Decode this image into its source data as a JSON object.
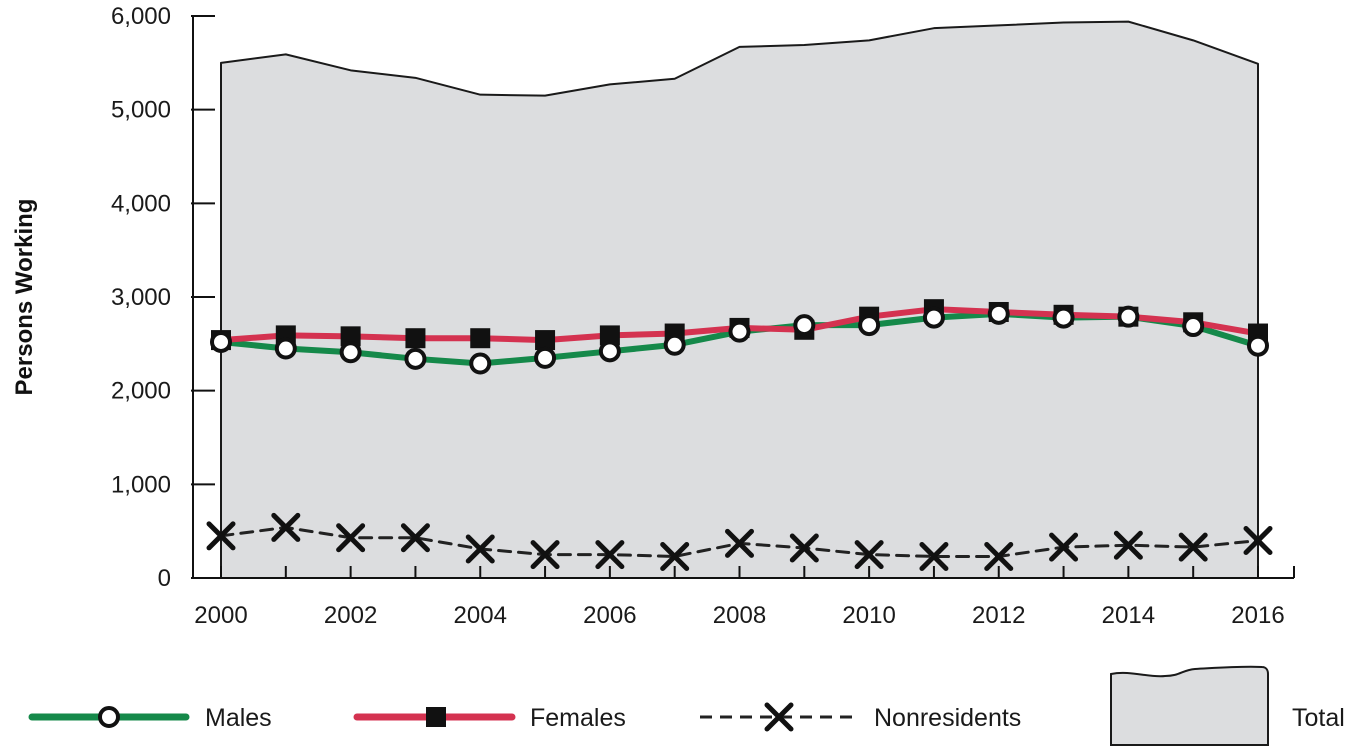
{
  "chart_data": {
    "type": "line",
    "ylabel": "Persons Working",
    "xlabel": "",
    "ylim": [
      0,
      6000
    ],
    "y_ticks": [
      0,
      1000,
      2000,
      3000,
      4000,
      5000,
      6000
    ],
    "y_tick_labels": [
      "0",
      "1,000",
      "2,000",
      "3,000",
      "4,000",
      "5,000",
      "6,000"
    ],
    "x_ticks": [
      2000,
      2002,
      2004,
      2006,
      2008,
      2010,
      2012,
      2014,
      2016
    ],
    "x_tick_labels": [
      "2000",
      "2002",
      "2004",
      "2006",
      "2008",
      "2010",
      "2012",
      "2014",
      "2016"
    ],
    "x": [
      2000,
      2001,
      2002,
      2003,
      2004,
      2005,
      2006,
      2007,
      2008,
      2009,
      2010,
      2011,
      2012,
      2013,
      2014,
      2015,
      2016
    ],
    "series": [
      {
        "name": "Total",
        "kind": "area",
        "values": [
          5500,
          5590,
          5420,
          5340,
          5160,
          5150,
          5270,
          5330,
          5670,
          5690,
          5740,
          5870,
          5900,
          5930,
          5940,
          5740,
          5490
        ]
      },
      {
        "name": "Males",
        "kind": "line",
        "marker": "open-circle",
        "values": [
          2520,
          2450,
          2410,
          2340,
          2290,
          2350,
          2420,
          2490,
          2630,
          2700,
          2700,
          2780,
          2820,
          2780,
          2790,
          2690,
          2480
        ]
      },
      {
        "name": "Females",
        "kind": "line",
        "marker": "filled-square",
        "values": [
          2540,
          2590,
          2580,
          2560,
          2560,
          2540,
          2590,
          2610,
          2670,
          2650,
          2790,
          2870,
          2840,
          2810,
          2790,
          2730,
          2610
        ]
      },
      {
        "name": "Nonresidents",
        "kind": "line",
        "marker": "x",
        "values": [
          450,
          540,
          430,
          430,
          310,
          250,
          250,
          230,
          370,
          320,
          250,
          230,
          230,
          330,
          350,
          330,
          400
        ]
      }
    ],
    "colors": {
      "males": "#15894a",
      "females": "#d43250",
      "nonresidents": "#222222",
      "total_fill": "#dcdddf",
      "total_stroke": "#1a1a1a"
    },
    "legend": {
      "position": "bottom",
      "items": [
        "Males",
        "Females",
        "Nonresidents",
        "Total"
      ]
    },
    "grid": false
  }
}
